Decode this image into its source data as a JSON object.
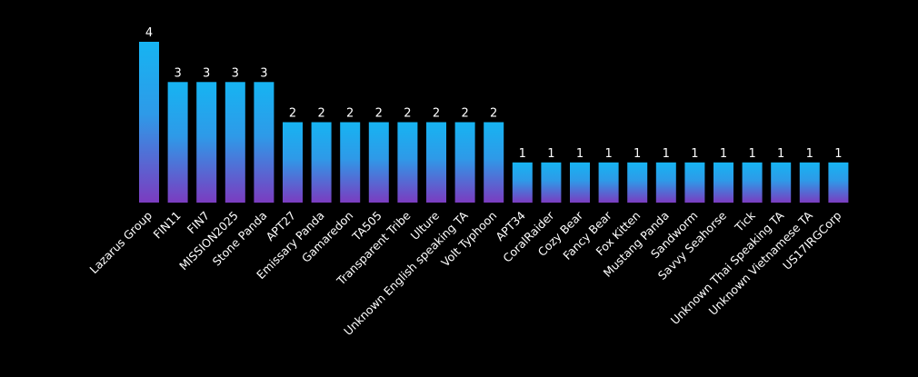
{
  "chart_data": {
    "type": "bar",
    "categories": [
      "Lazarus Group",
      "FIN11",
      "FIN7",
      "MISSION2025",
      "Stone Panda",
      "APT27",
      "Emissary Panda",
      "Gamaredon",
      "TA505",
      "Transparent Tribe",
      "Ulture",
      "Unknown English speaking TA",
      "Volt Typhoon",
      "APT34",
      "CoralRaider",
      "Cozy Bear",
      "Fancy Bear",
      "Fox Kitten",
      "Mustang Panda",
      "Sandworm",
      "Savvy Seahorse",
      "Tick",
      "Unknown Thai Speaking TA",
      "Unknown Vietnamese TA",
      "US17IRGCorp"
    ],
    "values": [
      4,
      3,
      3,
      3,
      3,
      2,
      2,
      2,
      2,
      2,
      2,
      2,
      2,
      1,
      1,
      1,
      1,
      1,
      1,
      1,
      1,
      1,
      1,
      1,
      1
    ],
    "ylim": [
      0,
      4
    ],
    "grid": false,
    "data_labels": true,
    "colors": {
      "background": "#000000",
      "bar_top": "#16b4f2",
      "bar_bottom": "#7b3cc0",
      "text": "#ffffff"
    }
  }
}
